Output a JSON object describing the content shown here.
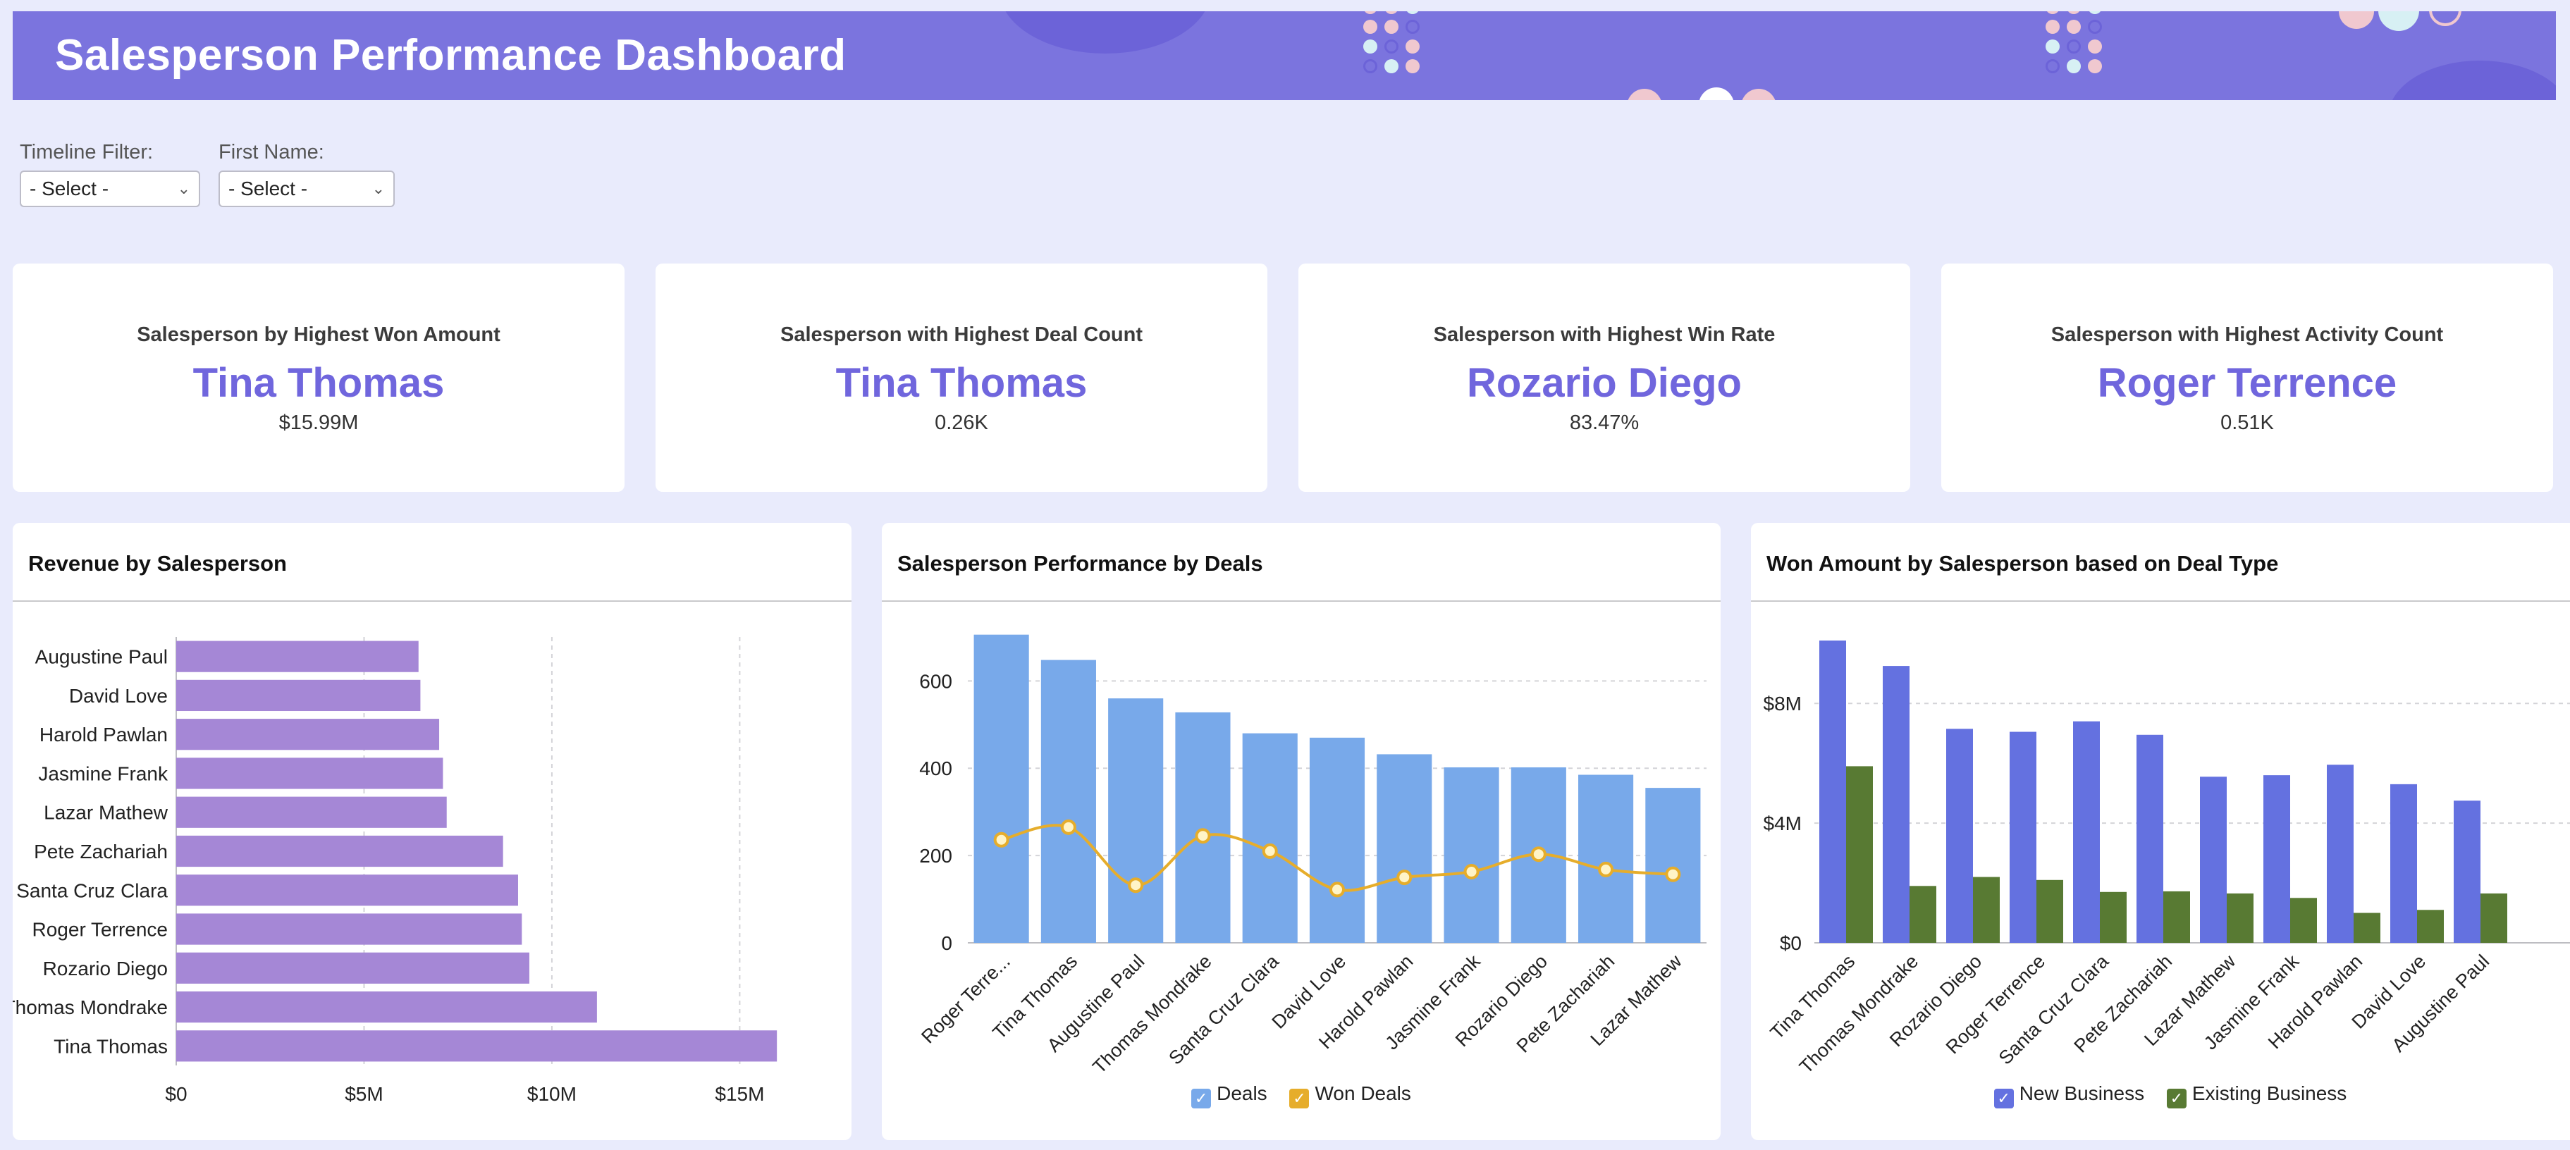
{
  "header": {
    "title": "Salesperson Performance Dashboard"
  },
  "filters": [
    {
      "label": "Timeline Filter:",
      "value": "- Select -"
    },
    {
      "label": "First Name:",
      "value": "- Select -"
    }
  ],
  "kpis": [
    {
      "label": "Salesperson by Highest Won Amount",
      "name": "Tina Thomas",
      "value": "$15.99M"
    },
    {
      "label": "Salesperson with Highest Deal Count",
      "name": "Tina Thomas",
      "value": "0.26K"
    },
    {
      "label": "Salesperson with Highest Win Rate",
      "name": "Rozario Diego",
      "value": "83.47%"
    },
    {
      "label": "Salesperson with Highest Activity Count",
      "name": "Roger Terrence",
      "value": "0.51K"
    }
  ],
  "colors": {
    "header": "#7b74de",
    "kpi_name": "#7066dd",
    "revenue_bar": "#a587d6",
    "deals_bar": "#78a9ea",
    "won_deals": "#e6ad2b",
    "new_business": "#6471e0",
    "existing_business": "#587a33"
  },
  "panels": {
    "revenue": {
      "title": "Revenue by Salesperson"
    },
    "deals": {
      "title": "Salesperson Performance by Deals"
    },
    "won": {
      "title": "Won Amount by Salesperson based on Deal Type"
    }
  },
  "chart_data": [
    {
      "type": "bar",
      "orientation": "horizontal",
      "categories": [
        "Augustine Paul",
        "David Love",
        "Harold Pawlan",
        "Jasmine Frank",
        "Lazar Mathew",
        "Pete Zachariah",
        "Santa Cruz Clara",
        "Roger Terrence",
        "Rozario Diego",
        "Thomas Mondrake",
        "Tina Thomas"
      ],
      "values": [
        6.45,
        6.5,
        7.0,
        7.1,
        7.2,
        8.7,
        9.1,
        9.2,
        9.4,
        11.2,
        15.99
      ],
      "xlim": [
        0,
        17
      ],
      "xticks": [
        {
          "v": 0,
          "label": "$0"
        },
        {
          "v": 5,
          "label": "$5M"
        },
        {
          "v": 10,
          "label": "$10M"
        },
        {
          "v": 15,
          "label": "$15M"
        }
      ],
      "grid": true
    },
    {
      "type": "bar",
      "categories": [
        "Roger Terre...",
        "Tina Thomas",
        "Augustine Paul",
        "Thomas Mondrake",
        "Santa Cruz Clara",
        "David Love",
        "Harold Pawlan",
        "Jasmine Frank",
        "Rozario Diego",
        "Pete Zachariah",
        "Lazar Mathew"
      ],
      "series": [
        {
          "name": "Deals",
          "kind": "bar",
          "values": [
            706,
            648,
            560,
            528,
            480,
            470,
            432,
            402,
            402,
            385,
            355
          ]
        },
        {
          "name": "Won Deals",
          "kind": "line",
          "values": [
            236,
            265,
            132,
            245,
            210,
            122,
            150,
            163,
            203,
            168,
            157
          ]
        }
      ],
      "ylim": [
        0,
        720
      ],
      "yticks": [
        0,
        200,
        400,
        600
      ],
      "grid": true,
      "legend": "bottom"
    },
    {
      "type": "bar",
      "categories": [
        "Tina Thomas",
        "Thomas Mondrake",
        "Rozario Diego",
        "Roger Terrence",
        "Santa Cruz Clara",
        "Pete Zachariah",
        "Lazar Mathew",
        "Jasmine Frank",
        "Harold Pawlan",
        "David Love",
        "Augustine Paul"
      ],
      "series": [
        {
          "name": "New Business",
          "values": [
            10.1,
            9.25,
            7.15,
            7.05,
            7.4,
            6.95,
            5.55,
            5.6,
            5.95,
            5.3,
            4.75
          ]
        },
        {
          "name": "Existing Business",
          "values": [
            5.9,
            1.9,
            2.2,
            2.1,
            1.7,
            1.72,
            1.65,
            1.5,
            1.0,
            1.1,
            1.65
          ]
        }
      ],
      "ylim": [
        0,
        10.5
      ],
      "yticks": [
        {
          "v": 0,
          "label": "$0"
        },
        {
          "v": 4,
          "label": "$4M"
        },
        {
          "v": 8,
          "label": "$8M"
        }
      ],
      "grid": true,
      "legend": "bottom"
    }
  ]
}
